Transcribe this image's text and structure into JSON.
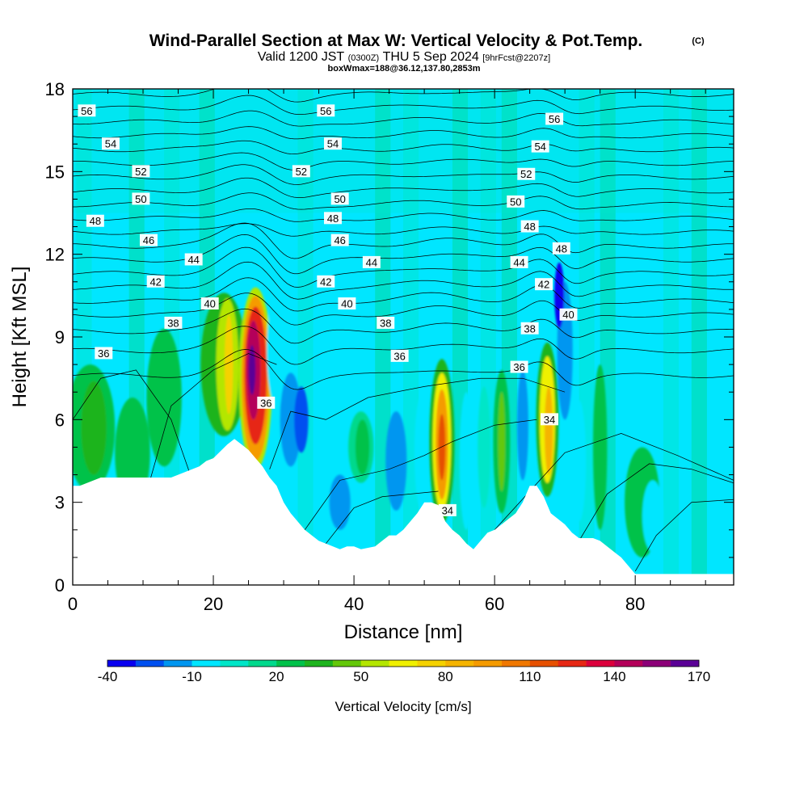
{
  "header": {
    "title_main": "Wind-Parallel Section at Max W: Vertical Velocity & Pot.Temp.",
    "title_sup": "(C)",
    "sub_a": "Valid 1200 JST",
    "sub_b": "(0300Z)",
    "sub_c": "THU 5 Sep 2024",
    "sub_d": "[9hrFcst@2207z]",
    "line3": "boxWmax=188@36.12,137.80,2853m"
  },
  "chart_data": {
    "type": "heatmap",
    "title": "Wind-Parallel Section at Max W: Vertical Velocity & Pot.Temp.",
    "xlabel": "Distance [nm]",
    "ylabel": "Height [Kft MSL]",
    "xlim": [
      0,
      94
    ],
    "ylim": [
      0,
      18
    ],
    "x_ticks": [
      0,
      20,
      40,
      60,
      80
    ],
    "y_ticks": [
      0,
      3,
      6,
      9,
      12,
      15,
      18
    ],
    "grid": false,
    "colorbar": {
      "label": "Vertical Velocity [cm/s]",
      "tick_labels": [
        "-40",
        "-10",
        "20",
        "50",
        "80",
        "110",
        "140",
        "170"
      ],
      "tick_values": [
        -40,
        -10,
        20,
        50,
        80,
        110,
        140,
        170
      ],
      "min": -40,
      "max": 170,
      "step": 10,
      "colors": [
        "#0a00f0",
        "#0050f0",
        "#0096f0",
        "#00e6ff",
        "#00e6c8",
        "#00d98c",
        "#00c24a",
        "#1eb41e",
        "#64c80a",
        "#b4e600",
        "#f0f000",
        "#f5d200",
        "#f5b400",
        "#f59b00",
        "#f07800",
        "#e65000",
        "#e62814",
        "#dc003c",
        "#b4005a",
        "#8c0078",
        "#5a0096"
      ]
    },
    "terrain_profile": {
      "x_nm": [
        0,
        1,
        4,
        14,
        16,
        18,
        19,
        20,
        22,
        23,
        24,
        25,
        26,
        27,
        27.5,
        28,
        29,
        30,
        31,
        32,
        33,
        34,
        35,
        36,
        37,
        38,
        39,
        40,
        41,
        43,
        44,
        45,
        46,
        47,
        48,
        49,
        50,
        51,
        52,
        53,
        54,
        55,
        56,
        57,
        58,
        59,
        60,
        61,
        62,
        63,
        64,
        65,
        66,
        67,
        68,
        69,
        70,
        71,
        72,
        73,
        74,
        75,
        76,
        77,
        78,
        79,
        80,
        94
      ],
      "height_kft": [
        3.6,
        3.6,
        3.9,
        3.9,
        4.1,
        4.3,
        4.5,
        4.6,
        5.1,
        5.3,
        5.1,
        4.9,
        4.6,
        4.3,
        4.1,
        3.9,
        3.6,
        3.0,
        2.6,
        2.3,
        2.0,
        1.8,
        1.6,
        1.5,
        1.4,
        1.3,
        1.4,
        1.4,
        1.3,
        1.4,
        1.6,
        1.8,
        1.8,
        2.0,
        2.3,
        2.6,
        3.0,
        3.0,
        2.9,
        2.3,
        2.0,
        1.8,
        1.5,
        1.3,
        1.6,
        1.9,
        2.0,
        2.2,
        2.4,
        2.6,
        3.0,
        3.6,
        3.6,
        3.2,
        2.6,
        2.4,
        2.2,
        1.9,
        1.7,
        1.7,
        1.7,
        1.6,
        1.4,
        1.2,
        1.0,
        0.7,
        0.4,
        0.4
      ]
    },
    "velocity_cells": [
      {
        "x": 2.5,
        "y": 5.7,
        "rx": 3.5,
        "ry": 2.3,
        "value": 20
      },
      {
        "x": 3,
        "y": 5.7,
        "rx": 1.8,
        "ry": 1.7,
        "value": 30
      },
      {
        "x": 8.5,
        "y": 4.8,
        "rx": 2.5,
        "ry": 2.0,
        "value": 20
      },
      {
        "x": 13,
        "y": 6.8,
        "rx": 2.5,
        "ry": 2.5,
        "value": 20
      },
      {
        "x": 21.5,
        "y": 8.0,
        "rx": 3.3,
        "ry": 2.6,
        "value": 30
      },
      {
        "x": 22,
        "y": 8.0,
        "rx": 1.6,
        "ry": 2.4,
        "value": 50
      },
      {
        "x": 22.2,
        "y": 8.0,
        "rx": 0.6,
        "ry": 1.8,
        "value": 70
      },
      {
        "x": 26,
        "y": 7.5,
        "rx": 2.4,
        "ry": 3.3,
        "value": 50
      },
      {
        "x": 26,
        "y": 7.5,
        "rx": 2.0,
        "ry": 3.0,
        "value": 90
      },
      {
        "x": 26,
        "y": 7.6,
        "rx": 1.6,
        "ry": 2.5,
        "value": 120
      },
      {
        "x": 25.7,
        "y": 7.8,
        "rx": 1.0,
        "ry": 1.8,
        "value": 140
      },
      {
        "x": 25.5,
        "y": 7.8,
        "rx": 0.5,
        "ry": 0.9,
        "value": 170
      },
      {
        "x": 29,
        "y": 8.5,
        "rx": 1.4,
        "ry": 2.0,
        "value": -10
      },
      {
        "x": 31,
        "y": 6.0,
        "rx": 1.5,
        "ry": 1.7,
        "value": -20
      },
      {
        "x": 32.5,
        "y": 6.0,
        "rx": 1.0,
        "ry": 1.2,
        "value": -30
      },
      {
        "x": 38,
        "y": 3.0,
        "rx": 1.5,
        "ry": 1.0,
        "value": -20
      },
      {
        "x": 41,
        "y": 5.0,
        "rx": 1.8,
        "ry": 1.3,
        "value": 10
      },
      {
        "x": 41.2,
        "y": 5.0,
        "rx": 1.0,
        "ry": 1.0,
        "value": 20
      },
      {
        "x": 46,
        "y": 4.5,
        "rx": 1.5,
        "ry": 1.8,
        "value": -20
      },
      {
        "x": 49.5,
        "y": 4.8,
        "rx": 0.9,
        "ry": 2.0,
        "value": -10
      },
      {
        "x": 52.5,
        "y": 5.2,
        "rx": 1.8,
        "ry": 3.0,
        "value": 30
      },
      {
        "x": 52.5,
        "y": 5.2,
        "rx": 1.3,
        "ry": 2.5,
        "value": 60
      },
      {
        "x": 52.5,
        "y": 5.1,
        "rx": 0.9,
        "ry": 2.0,
        "value": 90
      },
      {
        "x": 52.5,
        "y": 5.0,
        "rx": 0.5,
        "ry": 1.2,
        "value": 110
      },
      {
        "x": 56,
        "y": 4.5,
        "rx": 1.0,
        "ry": 2.5,
        "value": -10
      },
      {
        "x": 58.5,
        "y": 5.0,
        "rx": 0.9,
        "ry": 2.2,
        "value": 0
      },
      {
        "x": 61,
        "y": 5.2,
        "rx": 1.2,
        "ry": 2.6,
        "value": 20
      },
      {
        "x": 61,
        "y": 5.2,
        "rx": 0.5,
        "ry": 1.8,
        "value": 40
      },
      {
        "x": 64,
        "y": 5.8,
        "rx": 0.8,
        "ry": 2.0,
        "value": -20
      },
      {
        "x": 67.5,
        "y": 6.0,
        "rx": 1.6,
        "ry": 2.8,
        "value": 30
      },
      {
        "x": 67.5,
        "y": 6.0,
        "rx": 1.1,
        "ry": 2.3,
        "value": 60
      },
      {
        "x": 67.7,
        "y": 5.6,
        "rx": 0.6,
        "ry": 1.6,
        "value": 80
      },
      {
        "x": 70,
        "y": 8.5,
        "rx": 1.1,
        "ry": 2.5,
        "value": -20
      },
      {
        "x": 69.2,
        "y": 10.5,
        "rx": 0.7,
        "ry": 1.2,
        "value": -40
      },
      {
        "x": 72,
        "y": 4.5,
        "rx": 1.0,
        "ry": 2.2,
        "value": -10
      },
      {
        "x": 75,
        "y": 5.0,
        "rx": 1.0,
        "ry": 3.0,
        "value": 20
      },
      {
        "x": 81,
        "y": 3.0,
        "rx": 2.5,
        "ry": 2.0,
        "value": 20
      },
      {
        "x": 92,
        "y": 3.0,
        "rx": 1.2,
        "ry": 1.2,
        "value": -10
      },
      {
        "x": 82.5,
        "y": 2.5,
        "rx": 1.5,
        "ry": 1.3,
        "value": -10
      }
    ],
    "isentrope_labels": [
      {
        "value": "56",
        "x": 2,
        "y": 17.2
      },
      {
        "value": "54",
        "x": 5.4,
        "y": 16.0
      },
      {
        "value": "52",
        "x": 9.7,
        "y": 15.0
      },
      {
        "value": "50",
        "x": 9.7,
        "y": 14.0
      },
      {
        "value": "48",
        "x": 3.2,
        "y": 13.2
      },
      {
        "value": "46",
        "x": 10.8,
        "y": 12.5
      },
      {
        "value": "44",
        "x": 17.2,
        "y": 11.8
      },
      {
        "value": "42",
        "x": 11.8,
        "y": 11.0
      },
      {
        "value": "40",
        "x": 19.5,
        "y": 10.2
      },
      {
        "value": "38",
        "x": 14.3,
        "y": 9.5
      },
      {
        "value": "36",
        "x": 4.4,
        "y": 8.4
      },
      {
        "value": "56",
        "x": 36,
        "y": 17.2
      },
      {
        "value": "54",
        "x": 37,
        "y": 16.0
      },
      {
        "value": "52",
        "x": 32.5,
        "y": 15.0
      },
      {
        "value": "50",
        "x": 38,
        "y": 14.0
      },
      {
        "value": "48",
        "x": 37,
        "y": 13.3
      },
      {
        "value": "46",
        "x": 38,
        "y": 12.5
      },
      {
        "value": "44",
        "x": 42.5,
        "y": 11.7
      },
      {
        "value": "42",
        "x": 36,
        "y": 11.0
      },
      {
        "value": "40",
        "x": 39,
        "y": 10.2
      },
      {
        "value": "38",
        "x": 44.5,
        "y": 9.5
      },
      {
        "value": "36",
        "x": 46.5,
        "y": 8.3
      },
      {
        "value": "56",
        "x": 68.5,
        "y": 16.9
      },
      {
        "value": "54",
        "x": 66.5,
        "y": 15.9
      },
      {
        "value": "52",
        "x": 64.5,
        "y": 14.9
      },
      {
        "value": "50",
        "x": 63,
        "y": 13.9
      },
      {
        "value": "48",
        "x": 65,
        "y": 13.0
      },
      {
        "value": "48",
        "x": 69.5,
        "y": 12.2
      },
      {
        "value": "44",
        "x": 63.5,
        "y": 11.7
      },
      {
        "value": "42",
        "x": 67,
        "y": 10.9
      },
      {
        "value": "40",
        "x": 70.5,
        "y": 9.8
      },
      {
        "value": "38",
        "x": 65,
        "y": 9.3
      },
      {
        "value": "36",
        "x": 63.5,
        "y": 7.9
      },
      {
        "value": "36",
        "x": 27.5,
        "y": 6.6
      },
      {
        "value": "34",
        "x": 67.8,
        "y": 6.0
      },
      {
        "value": "34",
        "x": 53.3,
        "y": 2.7
      }
    ]
  }
}
